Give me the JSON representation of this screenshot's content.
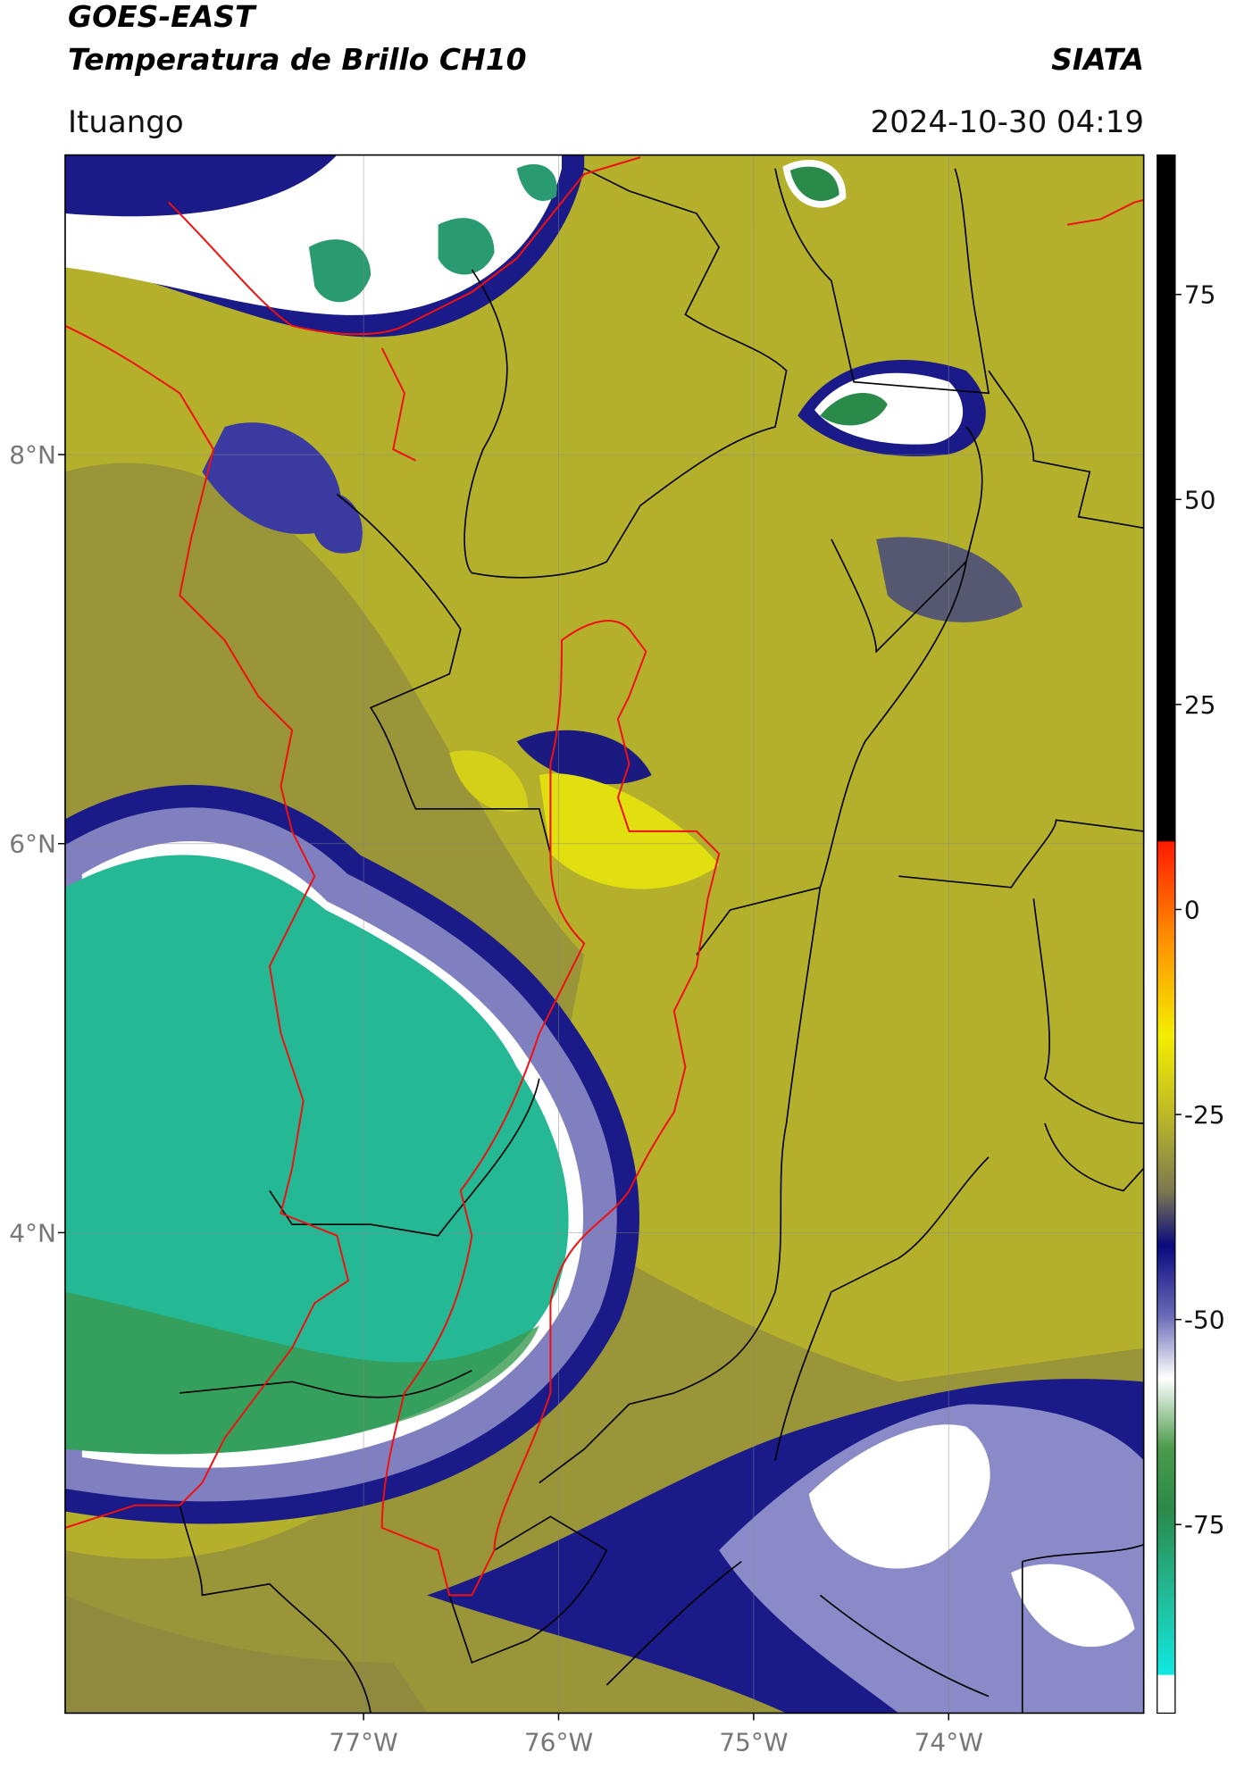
{
  "header": {
    "title": "GOES-EAST",
    "subtitle": "Temperatura de Brillo CH10",
    "source": "SIATA",
    "location": "Ituango",
    "datetime": "2024-10-30 04:19"
  },
  "map": {
    "xlim": [
      -78.53,
      -73.0
    ],
    "ylim": [
      1.53,
      9.54
    ],
    "xticks": [
      {
        "value": -77,
        "label": "77°W"
      },
      {
        "value": -76,
        "label": "76°W"
      },
      {
        "value": -75,
        "label": "75°W"
      },
      {
        "value": -74,
        "label": "74°W"
      }
    ],
    "yticks": [
      {
        "value": 8,
        "label": "8°N"
      },
      {
        "value": 6,
        "label": "6°N"
      },
      {
        "value": 4,
        "label": "4°N"
      }
    ],
    "grid": true
  },
  "colorbar": {
    "clim": [
      -98,
      92
    ],
    "ticks": [
      -75,
      -50,
      -25,
      0,
      25,
      50,
      75
    ]
  }
}
